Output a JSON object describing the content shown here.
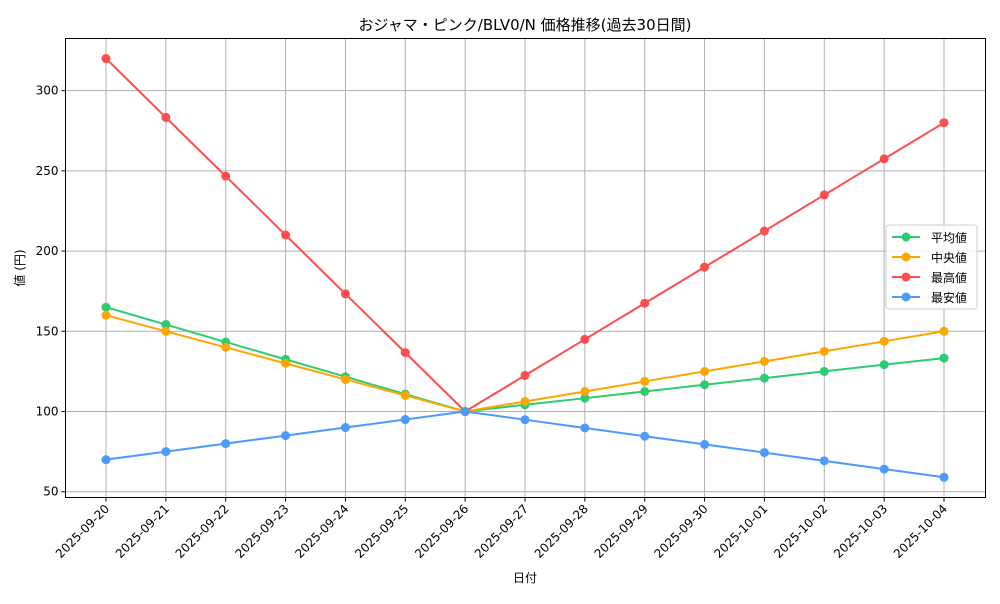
{
  "chart_data": {
    "type": "line",
    "title": "おジャマ・ピンク/BLV0/N 価格推移(過去30日間)",
    "xlabel": "日付",
    "ylabel": "値 (円)",
    "ylim": [
      46.4,
      332.5
    ],
    "yticks": [
      50,
      100,
      150,
      200,
      250,
      300
    ],
    "grid": true,
    "legend_position": "center-right",
    "categories": [
      "2025-09-20",
      "2025-09-21",
      "2025-09-22",
      "2025-09-23",
      "2025-09-24",
      "2025-09-25",
      "2025-09-26",
      "2025-09-27",
      "2025-09-28",
      "2025-09-29",
      "2025-09-30",
      "2025-10-01",
      "2025-10-02",
      "2025-10-03",
      "2025-10-04"
    ],
    "series": [
      {
        "name": "平均値",
        "color": "#2ecc71",
        "values": [
          165,
          154.2,
          143.3,
          132.5,
          121.7,
          110.8,
          100,
          104.2,
          108.3,
          112.5,
          116.7,
          120.8,
          125,
          129.2,
          133.3
        ]
      },
      {
        "name": "中央値",
        "color": "#ffa500",
        "values": [
          160,
          150,
          140,
          130,
          120,
          110,
          100,
          106.25,
          112.5,
          118.75,
          125,
          131.25,
          137.5,
          143.75,
          150
        ]
      },
      {
        "name": "最高値",
        "color": "#ff4d4d",
        "values": [
          320,
          283.3,
          246.7,
          210,
          173.3,
          136.7,
          100,
          122.5,
          145,
          167.5,
          190,
          212.5,
          235,
          257.5,
          280
        ]
      },
      {
        "name": "最安値",
        "color": "#4d9aff",
        "values": [
          70,
          75,
          80,
          85,
          90,
          95,
          100,
          94.9,
          89.75,
          84.6,
          79.5,
          74.4,
          69.25,
          64.1,
          59
        ]
      }
    ]
  }
}
